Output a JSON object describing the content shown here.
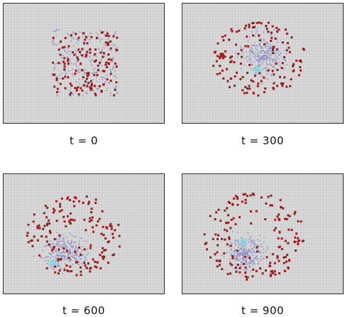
{
  "panels": [
    {
      "label": "t = 0",
      "time": 0
    },
    {
      "label": "t = 300",
      "time": 300
    },
    {
      "label": "t = 600",
      "time": 600
    },
    {
      "label": "t = 900",
      "time": 900
    }
  ],
  "colors": {
    "background": "#cfcfcf",
    "red_particles": "#9b1c1c",
    "blue_particles": "#8a8cc4",
    "cyan_core": "#7fd8e6",
    "border": "#2a2a2a"
  }
}
